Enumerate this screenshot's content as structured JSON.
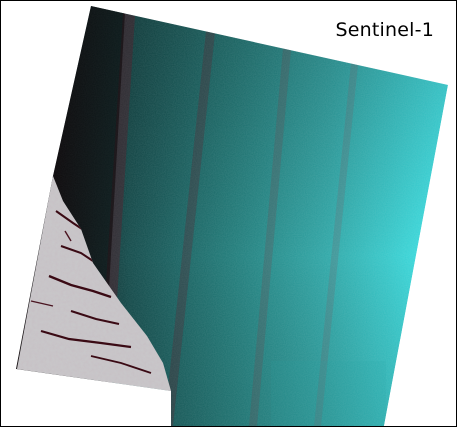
{
  "figure": {
    "label": "Sentinel-1"
  },
  "colors": {
    "frame": "#000000",
    "ocean_dark": "#120406",
    "ocean_mid": "#1f6f6d",
    "ocean_bright": "#3fe6ea",
    "land_ice": "#cfcfcf",
    "fjord": "#3a0a14",
    "swath_stripe": "#6a1524"
  },
  "icons": [
    "sar-scene-image"
  ]
}
